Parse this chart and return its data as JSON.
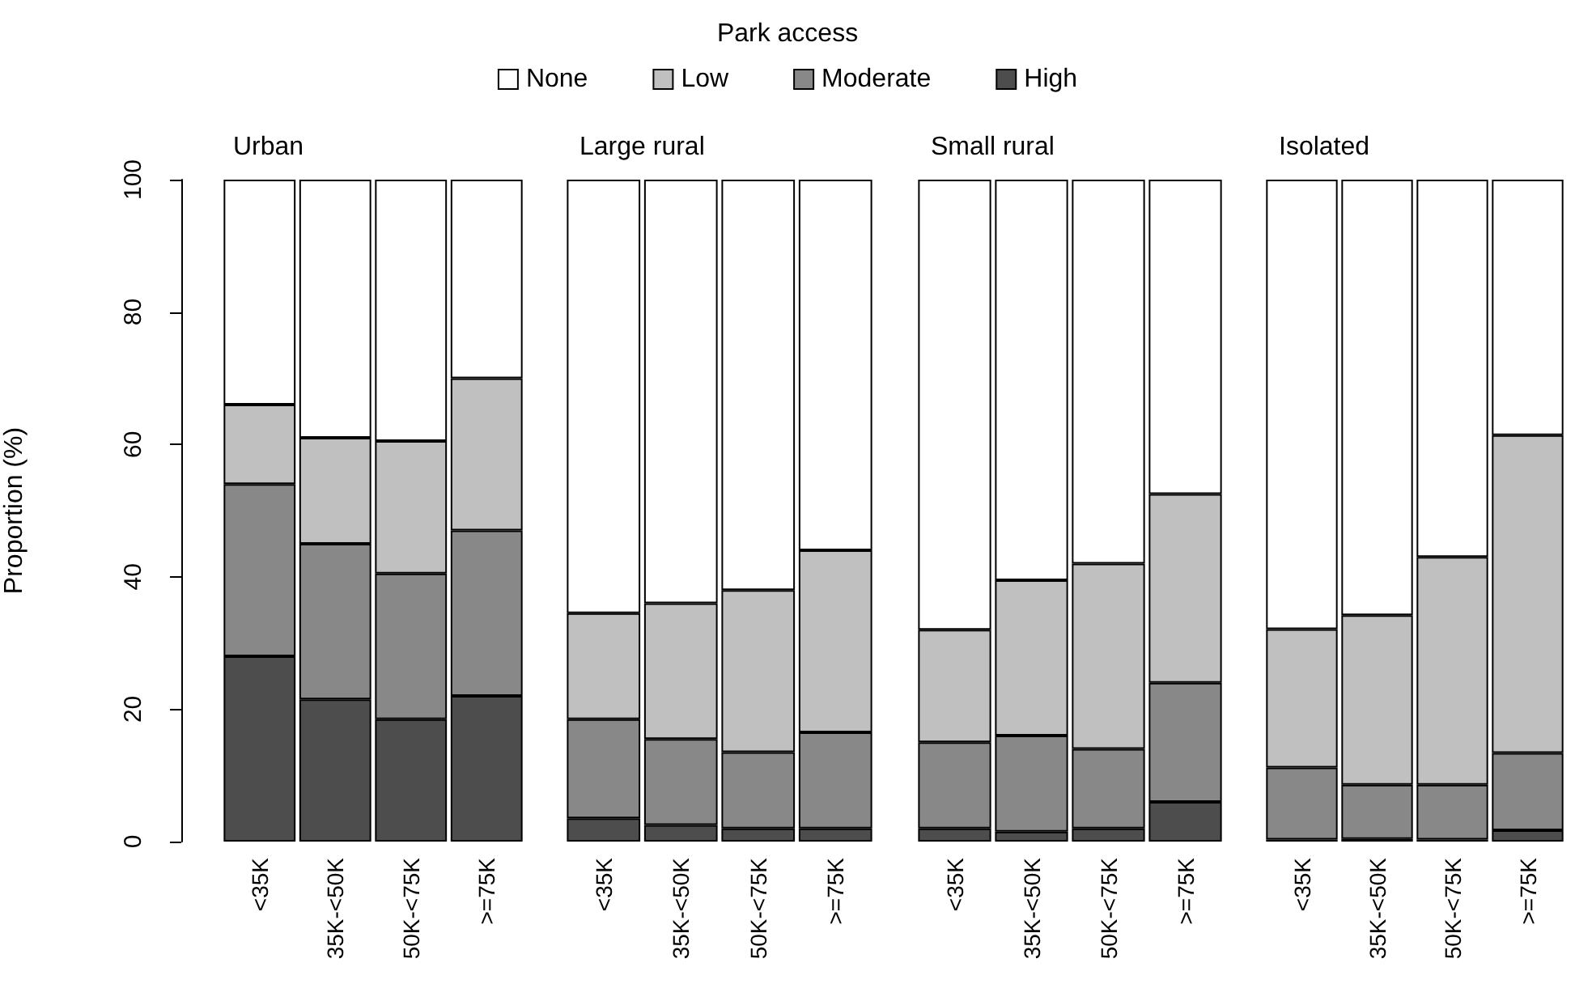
{
  "chart_data": [
    {
      "type": "bar",
      "title": "Urban",
      "ylabel": "Proportion (%)",
      "legend_title": "Park access",
      "legend": "top",
      "stacked": true,
      "categories": [
        "<35K",
        "35K-<50K",
        "50K-<75K",
        ">=75K"
      ],
      "series": [
        {
          "name": "High",
          "color": "#4d4d4d",
          "values": [
            28,
            21.5,
            18.5,
            22
          ]
        },
        {
          "name": "Moderate",
          "color": "#888888",
          "values": [
            26,
            23.5,
            22,
            25
          ]
        },
        {
          "name": "Low",
          "color": "#c0c0c0",
          "values": [
            12,
            16,
            20,
            23
          ]
        },
        {
          "name": "None",
          "color": "#ffffff",
          "values": [
            34,
            39,
            39.5,
            30
          ]
        }
      ],
      "ylim": [
        0,
        100
      ],
      "yticks": [
        0,
        20,
        40,
        60,
        80,
        100
      ]
    },
    {
      "type": "bar",
      "title": "Large rural",
      "stacked": true,
      "tick_labels": "x",
      "categories": [
        "<35K",
        "35K-<50K",
        "50K-<75K",
        ">=75K"
      ],
      "series": [
        {
          "color": "#4d4d4d",
          "values": [
            3.5,
            2.5,
            2,
            2
          ]
        },
        {
          "color": "#888888",
          "values": [
            15,
            13,
            11.5,
            14.5
          ]
        },
        {
          "color": "#c0c0c0",
          "values": [
            16,
            20.5,
            24.5,
            27.5
          ]
        },
        {
          "color": "#ffffff",
          "values": [
            65.5,
            64,
            62,
            56
          ]
        }
      ],
      "ylim": [
        0,
        100
      ],
      "yticks": [
        0,
        20,
        40,
        60,
        80,
        100
      ]
    },
    {
      "type": "bar",
      "title": "Small rural",
      "stacked": true,
      "tick_labels": "x",
      "categories": [
        "<35K",
        "35K-<50K",
        "50K-<75K",
        ">=75K"
      ],
      "series": [
        {
          "color": "#4d4d4d",
          "values": [
            2,
            1.5,
            2,
            6
          ]
        },
        {
          "color": "#888888",
          "values": [
            13,
            14.5,
            12,
            18
          ]
        },
        {
          "color": "#c0c0c0",
          "values": [
            17,
            23.5,
            28,
            28.5
          ]
        },
        {
          "color": "#ffffff",
          "values": [
            68,
            60.5,
            58,
            47.5
          ]
        }
      ],
      "ylim": [
        0,
        100
      ],
      "yticks": [
        0,
        20,
        40,
        60,
        80,
        100
      ]
    },
    {
      "type": "bar",
      "title": "Isolated",
      "stacked": true,
      "tick_labels": "x",
      "categories": [
        "<35K",
        "35K-<50K",
        "50K-<75K",
        ">=75K"
      ],
      "series": [
        {
          "color": "#4d4d4d",
          "values": [
            0.3,
            0.4,
            0.3,
            1.7
          ]
        },
        {
          "color": "#888888",
          "values": [
            10.9,
            8.2,
            8.3,
            11.7
          ]
        },
        {
          "color": "#c0c0c0",
          "values": [
            20.9,
            25.6,
            34.4,
            48
          ]
        },
        {
          "color": "#ffffff",
          "values": [
            67.9,
            65.8,
            57,
            38.6
          ]
        }
      ],
      "ylim": [
        0,
        100
      ],
      "yticks": [
        0,
        20,
        40,
        60,
        80,
        100
      ]
    }
  ]
}
